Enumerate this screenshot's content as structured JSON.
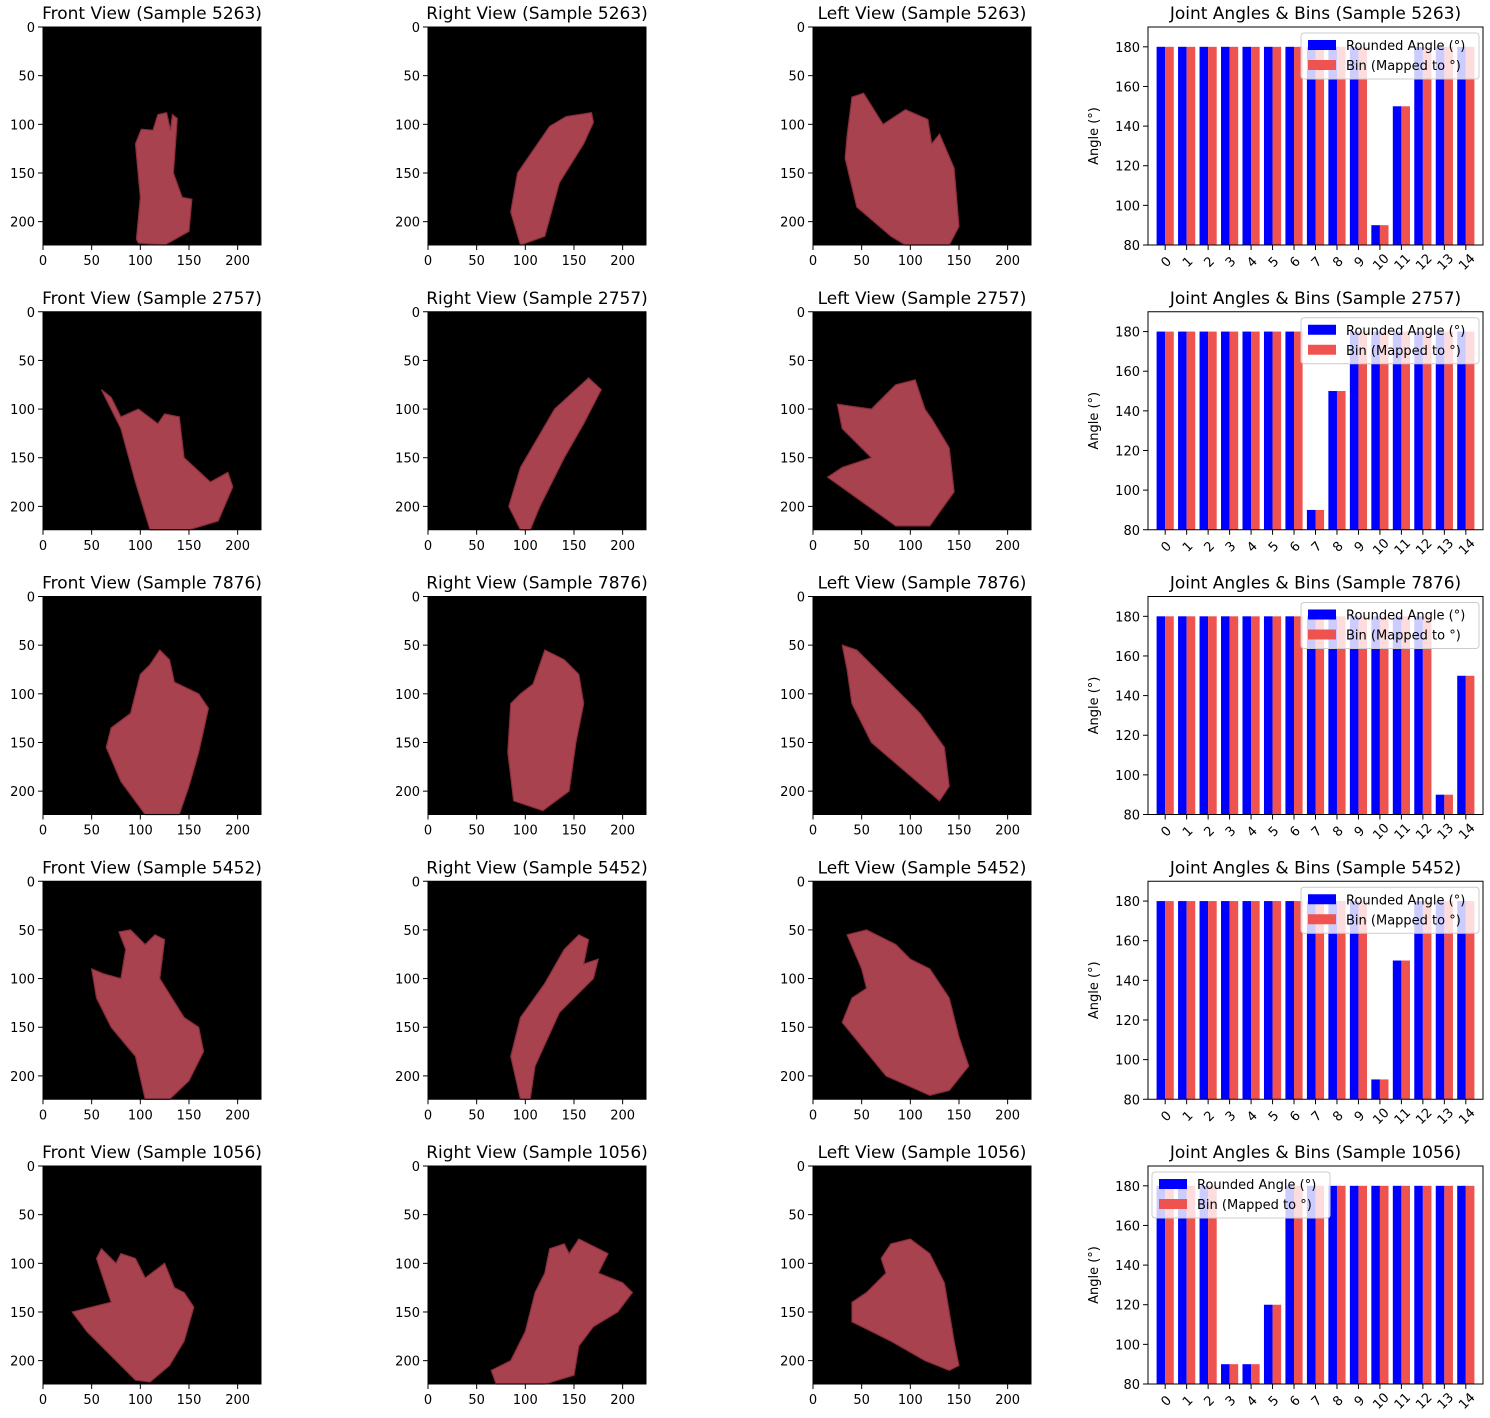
{
  "figure": {
    "rows": [
      {
        "sample": "5263",
        "front_title": "Front View (Sample 5263)",
        "right_title": "Right View (Sample 5263)",
        "left_title": "Left View (Sample 5263)",
        "chart_title": "Joint Angles & Bins (Sample 5263)"
      },
      {
        "sample": "2757",
        "front_title": "Front View (Sample 2757)",
        "right_title": "Right View (Sample 2757)",
        "left_title": "Left View (Sample 2757)",
        "chart_title": "Joint Angles & Bins (Sample 2757)"
      },
      {
        "sample": "7876",
        "front_title": "Front View (Sample 7876)",
        "right_title": "Right View (Sample 7876)",
        "left_title": "Left View (Sample 7876)",
        "chart_title": "Joint Angles & Bins (Sample 7876)"
      },
      {
        "sample": "5452",
        "front_title": "Front View (Sample 5452)",
        "right_title": "Right View (Sample 5452)",
        "left_title": "Left View (Sample 5452)",
        "chart_title": "Joint Angles & Bins (Sample 5452)"
      },
      {
        "sample": "1056",
        "front_title": "Front View (Sample 1056)",
        "right_title": "Right View (Sample 1056)",
        "left_title": "Left View (Sample 1056)",
        "chart_title": "Joint Angles & Bins (Sample 1056)"
      }
    ],
    "image_axes": {
      "xticks": [
        0,
        50,
        100,
        150,
        200
      ],
      "yticks": [
        0,
        50,
        100,
        150,
        200
      ],
      "range": [
        0,
        224
      ]
    },
    "colors": {
      "image_background": "#000000",
      "hand": "#a8424f",
      "hand_dark": "#8a2c3a",
      "rounded": "#0000ff",
      "bin": "#ef5350"
    }
  },
  "chart_data": [
    {
      "type": "bar",
      "title": "Joint Angles & Bins (Sample 5263)",
      "xlabel": "",
      "ylabel": "Angle (°)",
      "categories": [
        "0",
        "1",
        "2",
        "3",
        "4",
        "5",
        "6",
        "7",
        "8",
        "9",
        "10",
        "11",
        "12",
        "13",
        "14"
      ],
      "ylim": [
        80,
        190
      ],
      "yticks": [
        80,
        100,
        120,
        140,
        160,
        180
      ],
      "legend_loc": "upper right",
      "series": [
        {
          "name": "Rounded Angle (°)",
          "color": "#0000ff",
          "values": [
            180,
            180,
            180,
            180,
            180,
            180,
            180,
            180,
            180,
            180,
            90,
            150,
            180,
            180,
            180
          ]
        },
        {
          "name": "Bin (Mapped to °)",
          "color": "#ef5350",
          "values": [
            180,
            180,
            180,
            180,
            180,
            180,
            180,
            180,
            180,
            180,
            90,
            150,
            180,
            180,
            180
          ]
        }
      ]
    },
    {
      "type": "bar",
      "title": "Joint Angles & Bins (Sample 2757)",
      "xlabel": "",
      "ylabel": "Angle (°)",
      "categories": [
        "0",
        "1",
        "2",
        "3",
        "4",
        "5",
        "6",
        "7",
        "8",
        "9",
        "10",
        "11",
        "12",
        "13",
        "14"
      ],
      "ylim": [
        80,
        190
      ],
      "yticks": [
        80,
        100,
        120,
        140,
        160,
        180
      ],
      "legend_loc": "upper right",
      "series": [
        {
          "name": "Rounded Angle (°)",
          "color": "#0000ff",
          "values": [
            180,
            180,
            180,
            180,
            180,
            180,
            180,
            90,
            150,
            180,
            180,
            180,
            180,
            180,
            180
          ]
        },
        {
          "name": "Bin (Mapped to °)",
          "color": "#ef5350",
          "values": [
            180,
            180,
            180,
            180,
            180,
            180,
            180,
            90,
            150,
            180,
            180,
            180,
            180,
            180,
            180
          ]
        }
      ]
    },
    {
      "type": "bar",
      "title": "Joint Angles & Bins (Sample 7876)",
      "xlabel": "",
      "ylabel": "Angle (°)",
      "categories": [
        "0",
        "1",
        "2",
        "3",
        "4",
        "5",
        "6",
        "7",
        "8",
        "9",
        "10",
        "11",
        "12",
        "13",
        "14"
      ],
      "ylim": [
        80,
        190
      ],
      "yticks": [
        80,
        100,
        120,
        140,
        160,
        180
      ],
      "legend_loc": "upper right",
      "series": [
        {
          "name": "Rounded Angle (°)",
          "color": "#0000ff",
          "values": [
            180,
            180,
            180,
            180,
            180,
            180,
            180,
            180,
            180,
            180,
            180,
            180,
            180,
            90,
            150
          ]
        },
        {
          "name": "Bin (Mapped to °)",
          "color": "#ef5350",
          "values": [
            180,
            180,
            180,
            180,
            180,
            180,
            180,
            180,
            180,
            180,
            180,
            180,
            180,
            90,
            150
          ]
        }
      ]
    },
    {
      "type": "bar",
      "title": "Joint Angles & Bins (Sample 5452)",
      "xlabel": "",
      "ylabel": "Angle (°)",
      "categories": [
        "0",
        "1",
        "2",
        "3",
        "4",
        "5",
        "6",
        "7",
        "8",
        "9",
        "10",
        "11",
        "12",
        "13",
        "14"
      ],
      "ylim": [
        80,
        190
      ],
      "yticks": [
        80,
        100,
        120,
        140,
        160,
        180
      ],
      "legend_loc": "upper right",
      "series": [
        {
          "name": "Rounded Angle (°)",
          "color": "#0000ff",
          "values": [
            180,
            180,
            180,
            180,
            180,
            180,
            180,
            180,
            180,
            180,
            90,
            150,
            180,
            180,
            180
          ]
        },
        {
          "name": "Bin (Mapped to °)",
          "color": "#ef5350",
          "values": [
            180,
            180,
            180,
            180,
            180,
            180,
            180,
            180,
            180,
            180,
            90,
            150,
            180,
            180,
            180
          ]
        }
      ]
    },
    {
      "type": "bar",
      "title": "Joint Angles & Bins (Sample 1056)",
      "xlabel": "",
      "ylabel": "Angle (°)",
      "categories": [
        "0",
        "1",
        "2",
        "3",
        "4",
        "5",
        "6",
        "7",
        "8",
        "9",
        "10",
        "11",
        "12",
        "13",
        "14"
      ],
      "ylim": [
        80,
        190
      ],
      "yticks": [
        80,
        100,
        120,
        140,
        160,
        180
      ],
      "legend_loc": "upper left",
      "series": [
        {
          "name": "Rounded Angle (°)",
          "color": "#0000ff",
          "values": [
            180,
            180,
            180,
            90,
            90,
            120,
            180,
            180,
            180,
            180,
            180,
            180,
            180,
            180,
            180
          ]
        },
        {
          "name": "Bin (Mapped to °)",
          "color": "#ef5350",
          "values": [
            180,
            180,
            180,
            90,
            90,
            120,
            180,
            180,
            180,
            180,
            180,
            180,
            180,
            180,
            180
          ]
        }
      ]
    }
  ]
}
